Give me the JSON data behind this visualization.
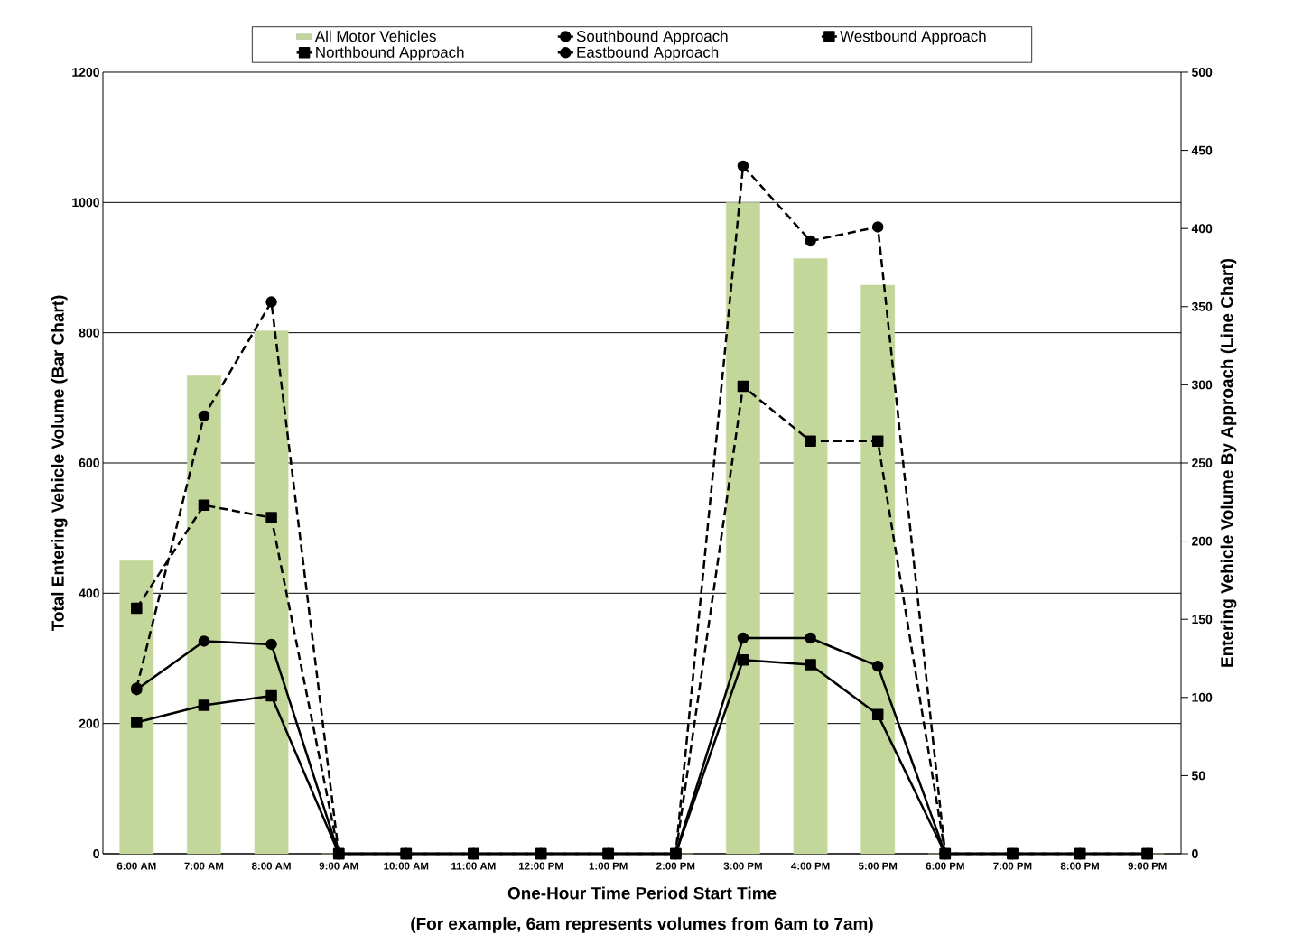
{
  "chart_data": {
    "type": "line",
    "xlabel": "One-Hour Time Period Start Time",
    "ylabel": "Total Entering Vehicle Volume (Bar Chart)",
    "y2label": "Entering Vehicle Volume By Approach (Line Chart)",
    "annotations": [
      "(For example, 6am represents volumes from 6am to 7am)"
    ],
    "categories": [
      "6:00 AM",
      "7:00 AM",
      "8:00 AM",
      "9:00 AM",
      "10:00 AM",
      "11:00 AM",
      "12:00 PM",
      "1:00 PM",
      "2:00 PM",
      "3:00 PM",
      "4:00 PM",
      "5:00 PM",
      "6:00 PM",
      "7:00 PM",
      "8:00 PM",
      "9:00 PM"
    ],
    "series": [
      {
        "name": "All Motor Vehicles",
        "type": "bar",
        "color": "#c4d79b",
        "values": [
          450,
          734,
          803,
          0,
          0,
          0,
          0,
          0,
          0,
          1000,
          914,
          873,
          0,
          0,
          0,
          0
        ]
      },
      {
        "name": "Northbound Approach",
        "axis": "y2",
        "color": "#000000",
        "marker": "square",
        "line_style": "solid",
        "values": [
          84,
          95,
          101,
          0,
          0,
          0,
          0,
          0,
          0,
          124,
          121,
          89,
          0,
          0,
          0,
          0
        ]
      },
      {
        "name": "Southbound Approach",
        "axis": "y2",
        "color": "#000000",
        "marker": "circle",
        "line_style": "solid",
        "values": [
          105,
          136,
          134,
          0,
          0,
          0,
          0,
          0,
          0,
          138,
          138,
          120,
          0,
          0,
          0,
          0
        ]
      },
      {
        "name": "Eastbound Approach",
        "axis": "y2",
        "color": "#000000",
        "marker": "circle",
        "line_style": "dashed",
        "values": [
          106,
          280,
          353,
          0,
          0,
          0,
          0,
          0,
          0,
          440,
          392,
          401,
          0,
          0,
          0,
          0
        ]
      },
      {
        "name": "Westbound Approach",
        "axis": "y2",
        "color": "#000000",
        "marker": "square",
        "line_style": "dashed",
        "values": [
          157,
          223,
          215,
          0,
          0,
          0,
          0,
          0,
          0,
          299,
          264,
          264,
          0,
          0,
          0,
          0
        ]
      }
    ],
    "ylim": [
      0,
      1200
    ],
    "yticks": [
      0,
      200,
      400,
      600,
      800,
      1000,
      1200
    ],
    "y2lim": [
      0,
      500
    ],
    "y2ticks": [
      0,
      50,
      100,
      150,
      200,
      250,
      300,
      350,
      400,
      450,
      500
    ],
    "grid": "y",
    "legend": "top"
  }
}
